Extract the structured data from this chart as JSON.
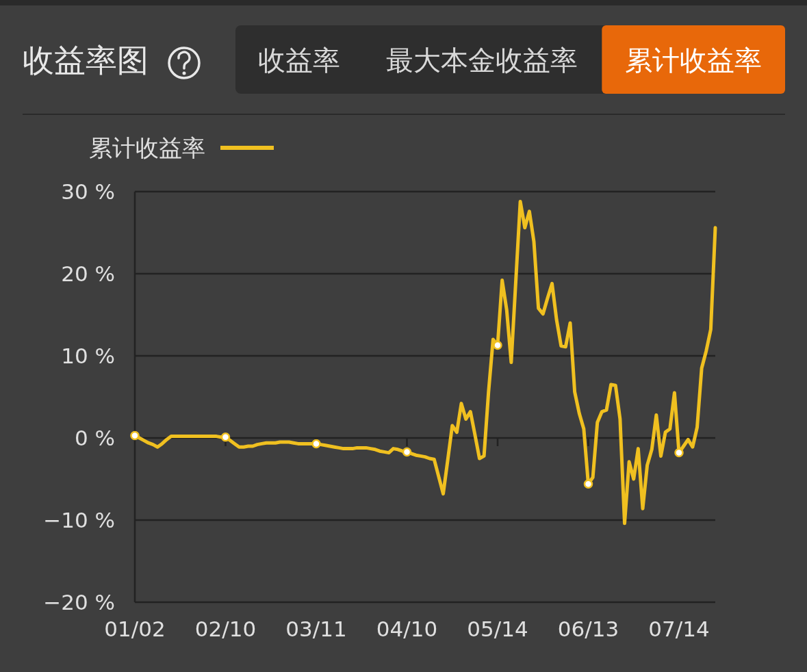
{
  "chart_data": {
    "type": "line",
    "title": "收益率图",
    "annotations": [
      "收益率",
      "最大本金收益率",
      "累计收益率"
    ],
    "categories": [
      "01/02",
      null,
      null,
      null,
      null,
      null,
      null,
      null,
      null,
      null,
      null,
      null,
      null,
      null,
      null,
      null,
      null,
      null,
      null,
      null,
      "02/10",
      null,
      null,
      null,
      null,
      null,
      null,
      null,
      null,
      null,
      null,
      null,
      null,
      null,
      null,
      null,
      null,
      null,
      null,
      null,
      "03/11",
      null,
      null,
      null,
      null,
      null,
      null,
      null,
      null,
      null,
      null,
      null,
      null,
      null,
      null,
      null,
      null,
      null,
      null,
      null,
      "04/10",
      null,
      null,
      null,
      null,
      null,
      null,
      null,
      null,
      null,
      null,
      null,
      null,
      null,
      null,
      null,
      null,
      null,
      null,
      null,
      "05/14",
      null,
      null,
      null,
      null,
      null,
      null,
      null,
      null,
      null,
      null,
      null,
      null,
      null,
      null,
      null,
      null,
      null,
      null,
      null,
      "06/13",
      null,
      null,
      null,
      null,
      null,
      null,
      null,
      null,
      null,
      null,
      null,
      null,
      null,
      null,
      null,
      null,
      null,
      null,
      null,
      "07/14",
      null,
      null,
      null,
      null,
      null,
      null,
      null,
      null
    ],
    "ylim": [
      -20,
      30
    ],
    "yticks": [
      {
        "value": 30,
        "label": "30 %"
      },
      {
        "value": 20,
        "label": "20 %"
      },
      {
        "value": 10,
        "label": "10 %"
      },
      {
        "value": 0,
        "label": "0 %"
      },
      {
        "value": -10,
        "label": "−10 %"
      },
      {
        "value": -20,
        "label": "−20 %"
      }
    ],
    "grid": "y",
    "legend": "top left",
    "series": [
      {
        "name": "累计收益率",
        "color": "#f0c020",
        "values": [
          0.3,
          0.0,
          -0.3,
          -0.6,
          -0.8,
          -1.1,
          -0.7,
          -0.2,
          0.2,
          0.2,
          0.2,
          0.2,
          0.2,
          0.2,
          0.2,
          0.2,
          0.2,
          0.2,
          0.2,
          0.1,
          0.1,
          -0.3,
          -0.7,
          -1.1,
          -1.1,
          -1.0,
          -1.0,
          -0.8,
          -0.7,
          -0.6,
          -0.6,
          -0.6,
          -0.5,
          -0.5,
          -0.5,
          -0.6,
          -0.7,
          -0.7,
          -0.7,
          -0.7,
          -0.7,
          -0.8,
          -0.9,
          -1.0,
          -1.1,
          -1.2,
          -1.3,
          -1.3,
          -1.3,
          -1.2,
          -1.2,
          -1.2,
          -1.3,
          -1.4,
          -1.6,
          -1.7,
          -1.8,
          -1.3,
          -1.4,
          -1.6,
          -1.7,
          -1.9,
          -2.1,
          -2.2,
          -2.3,
          -2.5,
          -2.6,
          -4.7,
          -6.8,
          -2.7,
          1.5,
          0.7,
          4.2,
          2.3,
          3.2,
          0.4,
          -2.5,
          -2.2,
          5.6,
          12.0,
          11.3,
          19.2,
          15.6,
          9.2,
          19.0,
          28.8,
          25.6,
          27.6,
          23.9,
          15.8,
          15.1,
          17.0,
          18.8,
          14.4,
          11.2,
          11.1,
          14.0,
          5.6,
          3.0,
          1.1,
          -5.6,
          -4.8,
          1.9,
          3.2,
          3.4,
          6.5,
          6.4,
          2.3,
          -10.4,
          -2.9,
          -5.0,
          -1.3,
          -8.6,
          -3.3,
          -1.4,
          2.8,
          -2.2,
          0.7,
          1.1,
          5.5,
          -1.8,
          -1.0,
          -0.2,
          -1.1,
          1.3,
          8.5,
          10.6,
          13.2,
          25.6
        ]
      },
      {
        "type": "scatter",
        "color": "#ffffff",
        "values": [
          0.3,
          null,
          null,
          null,
          null,
          null,
          null,
          null,
          null,
          null,
          null,
          null,
          null,
          null,
          null,
          null,
          null,
          null,
          null,
          null,
          0.1,
          null,
          null,
          null,
          null,
          null,
          null,
          null,
          null,
          null,
          null,
          null,
          null,
          null,
          null,
          null,
          null,
          null,
          null,
          null,
          -0.7,
          null,
          null,
          null,
          null,
          null,
          null,
          null,
          null,
          null,
          null,
          null,
          null,
          null,
          null,
          null,
          null,
          null,
          null,
          null,
          -1.7,
          null,
          null,
          null,
          null,
          null,
          null,
          null,
          null,
          null,
          null,
          null,
          null,
          null,
          null,
          null,
          null,
          null,
          null,
          null,
          11.3,
          null,
          null,
          null,
          null,
          null,
          null,
          null,
          null,
          null,
          null,
          null,
          null,
          null,
          null,
          null,
          null,
          null,
          null,
          null,
          -5.6,
          null,
          null,
          null,
          null,
          null,
          null,
          null,
          null,
          null,
          null,
          null,
          null,
          null,
          null,
          null,
          null,
          null,
          null,
          null,
          -1.8,
          null,
          null,
          null,
          null,
          null,
          null,
          null,
          null
        ]
      }
    ]
  }
}
